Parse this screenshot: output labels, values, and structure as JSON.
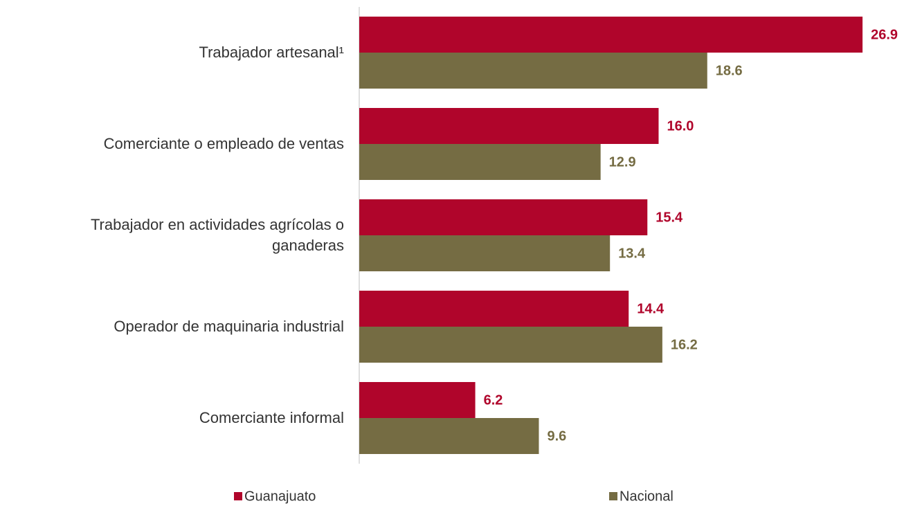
{
  "chart_data": {
    "type": "hbar",
    "categories": [
      "Trabajador artesanal¹",
      "Comerciante o empleado de ventas",
      "Trabajador en actividades agrícolas o ganaderas",
      "Operador de maquinaria industrial",
      "Comerciante informal"
    ],
    "series": [
      {
        "name": "Guanajuato",
        "color": "#b0052b",
        "values": [
          26.9,
          16.0,
          15.4,
          14.4,
          6.2
        ],
        "value_labels": [
          "26.9",
          "16.0",
          "15.4",
          "14.4",
          "6.2"
        ]
      },
      {
        "name": "Nacional",
        "color": "#756c43",
        "values": [
          18.6,
          12.9,
          13.4,
          16.2,
          9.6
        ],
        "value_labels": [
          "18.6",
          "12.9",
          "13.4",
          "16.2",
          "9.6"
        ]
      }
    ],
    "xlim": [
      0,
      28
    ],
    "legend": "bottom"
  }
}
